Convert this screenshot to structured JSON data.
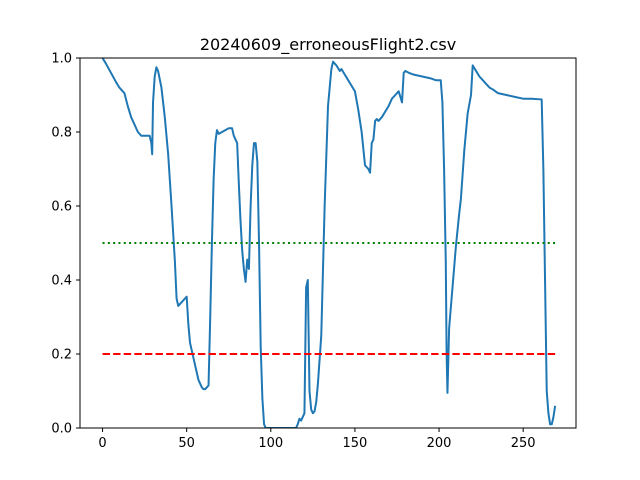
{
  "chart_data": {
    "type": "line",
    "title": "20240609_erroneousFlight2.csv",
    "xlabel": "",
    "ylabel": "",
    "xlim": [
      -13.4,
      281.4
    ],
    "ylim": [
      0.0,
      1.0
    ],
    "x_ticks": [
      0,
      50,
      100,
      150,
      200,
      250
    ],
    "y_ticks": [
      0.0,
      0.2,
      0.4,
      0.6,
      0.8,
      1.0
    ],
    "x_tick_labels": [
      "0",
      "50",
      "100",
      "150",
      "200",
      "250"
    ],
    "y_tick_labels": [
      "0.0",
      "0.2",
      "0.4",
      "0.6",
      "0.8",
      "1.0"
    ],
    "grid": false,
    "legend": false,
    "series": [
      {
        "color": "#1f77b4",
        "style": "solid",
        "points": [
          [
            0,
            1.0
          ],
          [
            2,
            0.985
          ],
          [
            5,
            0.96
          ],
          [
            8,
            0.935
          ],
          [
            10,
            0.92
          ],
          [
            12,
            0.91
          ],
          [
            13,
            0.905
          ],
          [
            15,
            0.87
          ],
          [
            17,
            0.84
          ],
          [
            19,
            0.82
          ],
          [
            21,
            0.8
          ],
          [
            23,
            0.79
          ],
          [
            25,
            0.79
          ],
          [
            27,
            0.79
          ],
          [
            28,
            0.79
          ],
          [
            29,
            0.77
          ],
          [
            29.5,
            0.74
          ],
          [
            30,
            0.88
          ],
          [
            31,
            0.95
          ],
          [
            32,
            0.975
          ],
          [
            33,
            0.965
          ],
          [
            35,
            0.92
          ],
          [
            37,
            0.84
          ],
          [
            39,
            0.74
          ],
          [
            41,
            0.6
          ],
          [
            43,
            0.45
          ],
          [
            44,
            0.35
          ],
          [
            45,
            0.33
          ],
          [
            47,
            0.34
          ],
          [
            49,
            0.35
          ],
          [
            50,
            0.355
          ],
          [
            51,
            0.28
          ],
          [
            52,
            0.23
          ],
          [
            53,
            0.21
          ],
          [
            55,
            0.17
          ],
          [
            57,
            0.13
          ],
          [
            59,
            0.11
          ],
          [
            60,
            0.105
          ],
          [
            61,
            0.105
          ],
          [
            63,
            0.115
          ],
          [
            64,
            0.3
          ],
          [
            65,
            0.5
          ],
          [
            66,
            0.67
          ],
          [
            67,
            0.77
          ],
          [
            68,
            0.805
          ],
          [
            69,
            0.795
          ],
          [
            71,
            0.8
          ],
          [
            73,
            0.805
          ],
          [
            75,
            0.81
          ],
          [
            77,
            0.81
          ],
          [
            78,
            0.79
          ],
          [
            80,
            0.77
          ],
          [
            81,
            0.66
          ],
          [
            82,
            0.56
          ],
          [
            83,
            0.48
          ],
          [
            84,
            0.43
          ],
          [
            85,
            0.395
          ],
          [
            86,
            0.455
          ],
          [
            87,
            0.43
          ],
          [
            88,
            0.6
          ],
          [
            89,
            0.71
          ],
          [
            90,
            0.77
          ],
          [
            91,
            0.77
          ],
          [
            92,
            0.72
          ],
          [
            93,
            0.5
          ],
          [
            94,
            0.22
          ],
          [
            95,
            0.08
          ],
          [
            96,
            0.01
          ],
          [
            97,
            0.0
          ],
          [
            100,
            0.0
          ],
          [
            105,
            0.0
          ],
          [
            110,
            0.0
          ],
          [
            115,
            0.0
          ],
          [
            116,
            0.01
          ],
          [
            117,
            0.025
          ],
          [
            118,
            0.02
          ],
          [
            119,
            0.03
          ],
          [
            120,
            0.04
          ],
          [
            121,
            0.38
          ],
          [
            122,
            0.4
          ],
          [
            123,
            0.1
          ],
          [
            124,
            0.05
          ],
          [
            125,
            0.04
          ],
          [
            126,
            0.045
          ],
          [
            127,
            0.07
          ],
          [
            128,
            0.12
          ],
          [
            130,
            0.25
          ],
          [
            132,
            0.6
          ],
          [
            134,
            0.87
          ],
          [
            136,
            0.97
          ],
          [
            137,
            0.99
          ],
          [
            139,
            0.98
          ],
          [
            141,
            0.965
          ],
          [
            142,
            0.97
          ],
          [
            144,
            0.955
          ],
          [
            146,
            0.94
          ],
          [
            148,
            0.925
          ],
          [
            150,
            0.91
          ],
          [
            152,
            0.86
          ],
          [
            154,
            0.8
          ],
          [
            156,
            0.71
          ],
          [
            158,
            0.7
          ],
          [
            159,
            0.69
          ],
          [
            160,
            0.77
          ],
          [
            161,
            0.78
          ],
          [
            162,
            0.83
          ],
          [
            163,
            0.835
          ],
          [
            164,
            0.83
          ],
          [
            166,
            0.84
          ],
          [
            168,
            0.855
          ],
          [
            170,
            0.87
          ],
          [
            172,
            0.89
          ],
          [
            174,
            0.9
          ],
          [
            176,
            0.91
          ],
          [
            177,
            0.895
          ],
          [
            178,
            0.88
          ],
          [
            179,
            0.96
          ],
          [
            180,
            0.965
          ],
          [
            182,
            0.96
          ],
          [
            185,
            0.955
          ],
          [
            190,
            0.95
          ],
          [
            195,
            0.945
          ],
          [
            198,
            0.94
          ],
          [
            201,
            0.94
          ],
          [
            202,
            0.88
          ],
          [
            203,
            0.7
          ],
          [
            204,
            0.45
          ],
          [
            204.5,
            0.2
          ],
          [
            205,
            0.095
          ],
          [
            206,
            0.27
          ],
          [
            208,
            0.38
          ],
          [
            210,
            0.49
          ],
          [
            212,
            0.58
          ],
          [
            213,
            0.62
          ],
          [
            215,
            0.75
          ],
          [
            217,
            0.85
          ],
          [
            219,
            0.9
          ],
          [
            220,
            0.98
          ],
          [
            222,
            0.965
          ],
          [
            224,
            0.95
          ],
          [
            226,
            0.94
          ],
          [
            228,
            0.93
          ],
          [
            230,
            0.92
          ],
          [
            232,
            0.915
          ],
          [
            235,
            0.905
          ],
          [
            240,
            0.9
          ],
          [
            245,
            0.895
          ],
          [
            250,
            0.89
          ],
          [
            255,
            0.89
          ],
          [
            261,
            0.888
          ],
          [
            262,
            0.7
          ],
          [
            263,
            0.4
          ],
          [
            264,
            0.1
          ],
          [
            265,
            0.04
          ],
          [
            266,
            0.01
          ],
          [
            267,
            0.01
          ],
          [
            268,
            0.03
          ],
          [
            269,
            0.06
          ]
        ]
      },
      {
        "color": "#008000",
        "style": "dotted",
        "points": [
          [
            0,
            0.5
          ],
          [
            269,
            0.5
          ]
        ]
      },
      {
        "color": "#ff0000",
        "style": "dashed",
        "points": [
          [
            0,
            0.2
          ],
          [
            269,
            0.2
          ]
        ]
      }
    ]
  }
}
